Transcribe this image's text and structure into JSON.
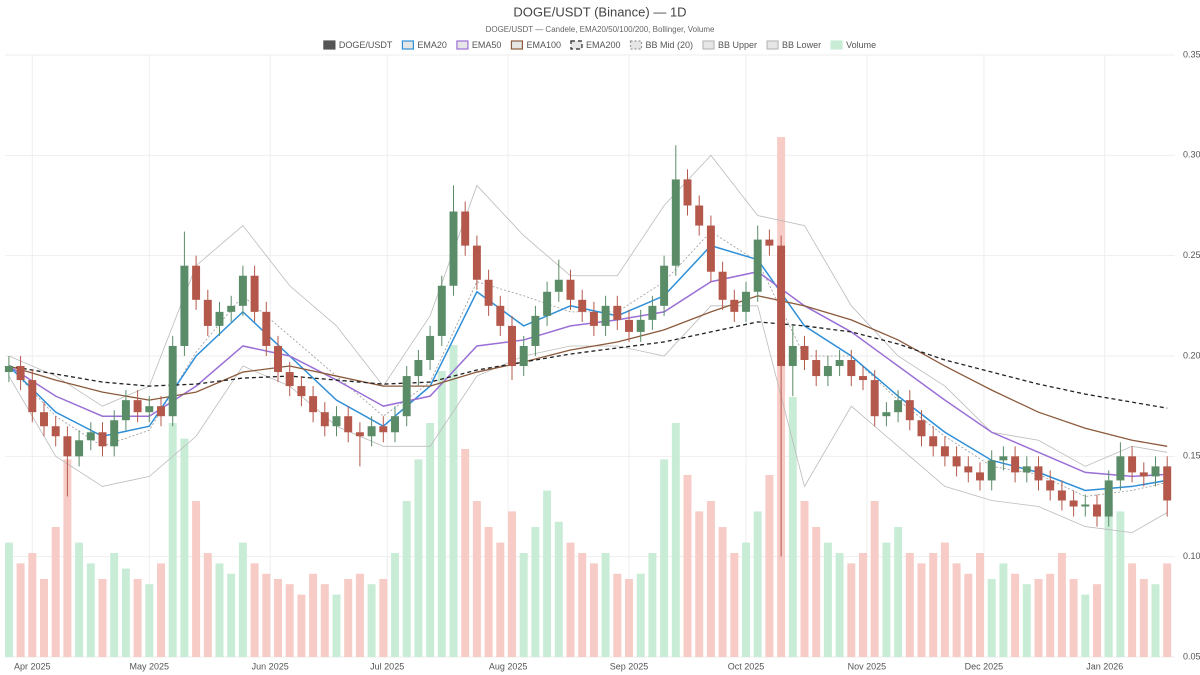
{
  "chart_data": {
    "type": "candlestick",
    "title": "DOGE/USDT (Binance) — 1D",
    "subtitle": "DOGE/USDT — Candele, EMA20/50/100/200, Bollinger, Volume",
    "name": "DOGE/USDT",
    "up_color": "#5a8c68",
    "down_color": "#b4584b",
    "volume_name": "Volume",
    "volume_up_color": "#c9ecd7",
    "volume_down_color": "#f7cbc6",
    "vlim": [
      0,
      100
    ],
    "xlim": [
      -1,
      299
    ],
    "ylim": [
      0.05,
      0.35
    ],
    "yticks": [
      0.05,
      {
        "value": 0.1,
        "label": "0.10"
      },
      0.15,
      {
        "value": 0.2,
        "label": "0.20"
      },
      0.25,
      {
        "value": 0.3,
        "label": "0.30"
      },
      0.35
    ],
    "xticks": [
      {
        "value": 6,
        "label": "Apr 2025"
      },
      {
        "value": 36,
        "label": "May 2025"
      },
      {
        "value": 67,
        "label": "Jun 2025"
      },
      {
        "value": 97,
        "label": "Jul 2025"
      },
      {
        "value": 128,
        "label": "Aug 2025"
      },
      {
        "value": 159,
        "label": "Sep 2025"
      },
      {
        "value": 189,
        "label": "Oct 2025"
      },
      {
        "value": 220,
        "label": "Nov 2025"
      },
      {
        "value": 250,
        "label": "Dec 2025"
      },
      {
        "value": 281,
        "label": "Jan 2026"
      }
    ],
    "grid": true,
    "x": [
      0,
      3,
      6,
      9,
      12,
      15,
      18,
      21,
      24,
      27,
      30,
      33,
      36,
      39,
      42,
      45,
      48,
      51,
      54,
      57,
      60,
      63,
      66,
      69,
      72,
      75,
      78,
      81,
      84,
      87,
      90,
      93,
      96,
      99,
      102,
      105,
      108,
      111,
      114,
      117,
      120,
      123,
      126,
      129,
      132,
      135,
      138,
      141,
      144,
      147,
      150,
      153,
      156,
      159,
      162,
      165,
      168,
      171,
      174,
      177,
      180,
      183,
      186,
      189,
      192,
      195,
      198,
      201,
      204,
      207,
      210,
      213,
      216,
      219,
      222,
      225,
      228,
      231,
      234,
      237,
      240,
      243,
      246,
      249,
      252,
      255,
      258,
      261,
      264,
      267,
      270,
      273,
      276,
      279,
      282,
      285,
      288,
      291,
      294,
      297
    ],
    "open": [
      0.192,
      0.195,
      0.188,
      0.172,
      0.165,
      0.16,
      0.15,
      0.158,
      0.162,
      0.155,
      0.168,
      0.178,
      0.172,
      0.175,
      0.17,
      0.205,
      0.245,
      0.228,
      0.215,
      0.222,
      0.225,
      0.24,
      0.222,
      0.205,
      0.192,
      0.185,
      0.18,
      0.172,
      0.165,
      0.17,
      0.162,
      0.16,
      0.165,
      0.162,
      0.17,
      0.19,
      0.198,
      0.21,
      0.235,
      0.272,
      0.255,
      0.238,
      0.225,
      0.215,
      0.195,
      0.205,
      0.22,
      0.232,
      0.238,
      0.228,
      0.222,
      0.215,
      0.225,
      0.218,
      0.212,
      0.218,
      0.225,
      0.245,
      0.288,
      0.275,
      0.265,
      0.242,
      0.228,
      0.222,
      0.232,
      0.258,
      0.255,
      0.195,
      0.205,
      0.198,
      0.19,
      0.195,
      0.198,
      0.19,
      0.188,
      0.17,
      0.172,
      0.178,
      0.168,
      0.16,
      0.155,
      0.15,
      0.145,
      0.142,
      0.138,
      0.148,
      0.15,
      0.142,
      0.145,
      0.138,
      0.133,
      0.128,
      0.125,
      0.126,
      0.12,
      0.138,
      0.15,
      0.142,
      0.14,
      0.145
    ],
    "high": [
      0.2,
      0.2,
      0.193,
      0.177,
      0.17,
      0.165,
      0.163,
      0.167,
      0.167,
      0.173,
      0.183,
      0.183,
      0.18,
      0.18,
      0.21,
      0.262,
      0.25,
      0.233,
      0.227,
      0.23,
      0.245,
      0.245,
      0.227,
      0.21,
      0.197,
      0.19,
      0.185,
      0.177,
      0.175,
      0.175,
      0.167,
      0.17,
      0.17,
      0.175,
      0.195,
      0.203,
      0.215,
      0.24,
      0.285,
      0.277,
      0.26,
      0.243,
      0.23,
      0.22,
      0.21,
      0.225,
      0.237,
      0.248,
      0.243,
      0.233,
      0.227,
      0.23,
      0.23,
      0.223,
      0.223,
      0.23,
      0.25,
      0.305,
      0.293,
      0.28,
      0.27,
      0.247,
      0.233,
      0.237,
      0.265,
      0.263,
      0.26,
      0.215,
      0.21,
      0.203,
      0.2,
      0.203,
      0.203,
      0.195,
      0.193,
      0.177,
      0.183,
      0.183,
      0.173,
      0.165,
      0.16,
      0.155,
      0.15,
      0.147,
      0.153,
      0.155,
      0.155,
      0.15,
      0.15,
      0.143,
      0.138,
      0.133,
      0.131,
      0.131,
      0.143,
      0.157,
      0.155,
      0.147,
      0.15,
      0.15
    ],
    "low": [
      0.187,
      0.183,
      0.167,
      0.16,
      0.155,
      0.13,
      0.145,
      0.153,
      0.15,
      0.15,
      0.163,
      0.167,
      0.167,
      0.165,
      0.165,
      0.2,
      0.223,
      0.21,
      0.21,
      0.217,
      0.22,
      0.217,
      0.2,
      0.187,
      0.18,
      0.175,
      0.167,
      0.16,
      0.16,
      0.157,
      0.145,
      0.155,
      0.157,
      0.157,
      0.165,
      0.185,
      0.193,
      0.205,
      0.23,
      0.25,
      0.233,
      0.22,
      0.21,
      0.188,
      0.19,
      0.2,
      0.215,
      0.227,
      0.223,
      0.217,
      0.21,
      0.21,
      0.213,
      0.207,
      0.207,
      0.213,
      0.22,
      0.24,
      0.27,
      0.26,
      0.237,
      0.223,
      0.217,
      0.217,
      0.227,
      0.25,
      0.1,
      0.18,
      0.193,
      0.185,
      0.185,
      0.19,
      0.185,
      0.183,
      0.165,
      0.165,
      0.167,
      0.163,
      0.155,
      0.15,
      0.145,
      0.14,
      0.137,
      0.133,
      0.133,
      0.143,
      0.137,
      0.137,
      0.133,
      0.128,
      0.123,
      0.12,
      0.12,
      0.115,
      0.115,
      0.133,
      0.137,
      0.135,
      0.135,
      0.12
    ],
    "close": [
      0.195,
      0.188,
      0.172,
      0.165,
      0.16,
      0.15,
      0.158,
      0.162,
      0.155,
      0.168,
      0.178,
      0.172,
      0.175,
      0.17,
      0.205,
      0.245,
      0.228,
      0.215,
      0.222,
      0.225,
      0.24,
      0.222,
      0.205,
      0.192,
      0.185,
      0.18,
      0.172,
      0.165,
      0.17,
      0.162,
      0.16,
      0.165,
      0.162,
      0.17,
      0.19,
      0.198,
      0.21,
      0.235,
      0.272,
      0.255,
      0.238,
      0.225,
      0.215,
      0.195,
      0.205,
      0.22,
      0.232,
      0.238,
      0.228,
      0.222,
      0.215,
      0.225,
      0.218,
      0.212,
      0.218,
      0.225,
      0.245,
      0.288,
      0.275,
      0.265,
      0.242,
      0.228,
      0.222,
      0.232,
      0.258,
      0.255,
      0.195,
      0.205,
      0.198,
      0.19,
      0.195,
      0.198,
      0.19,
      0.188,
      0.17,
      0.172,
      0.178,
      0.168,
      0.16,
      0.155,
      0.15,
      0.145,
      0.142,
      0.138,
      0.148,
      0.15,
      0.142,
      0.145,
      0.138,
      0.133,
      0.128,
      0.125,
      0.126,
      0.12,
      0.138,
      0.15,
      0.142,
      0.14,
      0.145,
      0.128
    ],
    "volume": [
      22,
      18,
      20,
      15,
      25,
      38,
      22,
      18,
      15,
      20,
      17,
      15,
      14,
      18,
      45,
      42,
      30,
      20,
      18,
      16,
      22,
      18,
      16,
      15,
      14,
      12,
      16,
      14,
      12,
      15,
      16,
      14,
      15,
      20,
      30,
      38,
      45,
      55,
      60,
      40,
      30,
      25,
      22,
      28,
      20,
      25,
      32,
      26,
      22,
      20,
      18,
      20,
      16,
      15,
      16,
      20,
      38,
      45,
      35,
      28,
      30,
      25,
      20,
      22,
      28,
      35,
      100,
      50,
      30,
      25,
      22,
      20,
      18,
      20,
      30,
      22,
      25,
      20,
      18,
      20,
      22,
      18,
      16,
      20,
      15,
      18,
      16,
      14,
      15,
      16,
      20,
      15,
      12,
      14,
      30,
      28,
      18,
      15,
      14,
      18
    ],
    "line_x": [
      0,
      12,
      24,
      36,
      48,
      60,
      72,
      84,
      96,
      108,
      120,
      132,
      144,
      156,
      168,
      180,
      192,
      204,
      216,
      228,
      240,
      252,
      264,
      276,
      288,
      297
    ],
    "lines": [
      {
        "name": "BB Mid (20)",
        "color": "#999999",
        "dash": "2,2",
        "width": 0.8,
        "values": [
          0.195,
          0.17,
          0.155,
          0.163,
          0.202,
          0.23,
          0.21,
          0.19,
          0.17,
          0.187,
          0.237,
          0.23,
          0.222,
          0.222,
          0.237,
          0.262,
          0.247,
          0.2,
          0.2,
          0.178,
          0.16,
          0.145,
          0.141,
          0.13,
          0.133,
          0.137
        ]
      },
      {
        "name": "BB Upper",
        "color": "#bbbbbb",
        "dash": "",
        "width": 0.8,
        "values": [
          0.2,
          0.19,
          0.175,
          0.185,
          0.245,
          0.265,
          0.235,
          0.215,
          0.185,
          0.22,
          0.285,
          0.26,
          0.24,
          0.24,
          0.275,
          0.3,
          0.27,
          0.265,
          0.225,
          0.2,
          0.185,
          0.162,
          0.158,
          0.145,
          0.155,
          0.152
        ]
      },
      {
        "name": "BB Lower",
        "color": "#bbbbbb",
        "dash": "",
        "width": 0.8,
        "values": [
          0.19,
          0.15,
          0.135,
          0.14,
          0.16,
          0.195,
          0.185,
          0.165,
          0.155,
          0.155,
          0.19,
          0.2,
          0.205,
          0.205,
          0.2,
          0.225,
          0.225,
          0.135,
          0.175,
          0.155,
          0.135,
          0.128,
          0.125,
          0.115,
          0.112,
          0.122
        ]
      },
      {
        "name": "EMA20",
        "color": "#2f8fd8",
        "dash": "",
        "width": 1.5,
        "values": [
          0.195,
          0.172,
          0.16,
          0.165,
          0.2,
          0.222,
          0.2,
          0.178,
          0.165,
          0.185,
          0.232,
          0.215,
          0.225,
          0.22,
          0.23,
          0.255,
          0.248,
          0.215,
          0.2,
          0.18,
          0.162,
          0.148,
          0.142,
          0.133,
          0.135,
          0.138
        ]
      },
      {
        "name": "EMA50",
        "color": "#9a6fd6",
        "dash": "",
        "width": 1.5,
        "values": [
          0.195,
          0.18,
          0.17,
          0.17,
          0.185,
          0.205,
          0.2,
          0.188,
          0.175,
          0.18,
          0.205,
          0.208,
          0.215,
          0.218,
          0.222,
          0.237,
          0.242,
          0.225,
          0.212,
          0.195,
          0.178,
          0.162,
          0.152,
          0.142,
          0.14,
          0.141
        ]
      },
      {
        "name": "EMA100",
        "color": "#8b5a3c",
        "dash": "",
        "width": 1.3,
        "values": [
          0.195,
          0.188,
          0.182,
          0.178,
          0.182,
          0.192,
          0.195,
          0.19,
          0.185,
          0.185,
          0.192,
          0.197,
          0.203,
          0.207,
          0.213,
          0.222,
          0.23,
          0.225,
          0.218,
          0.208,
          0.195,
          0.183,
          0.172,
          0.164,
          0.158,
          0.155
        ]
      },
      {
        "name": "EMA200",
        "color": "#222222",
        "dash": "4,3",
        "width": 1.3,
        "values": [
          0.195,
          0.191,
          0.187,
          0.185,
          0.186,
          0.189,
          0.19,
          0.188,
          0.186,
          0.187,
          0.193,
          0.197,
          0.201,
          0.204,
          0.207,
          0.212,
          0.217,
          0.215,
          0.212,
          0.206,
          0.198,
          0.192,
          0.186,
          0.181,
          0.177,
          0.174
        ]
      }
    ],
    "legend_order": [
      "DOGE/USDT",
      "EMA20",
      "EMA50",
      "EMA100",
      "EMA200",
      "BB Mid (20)",
      "BB Upper",
      "BB Lower",
      "Volume"
    ]
  }
}
